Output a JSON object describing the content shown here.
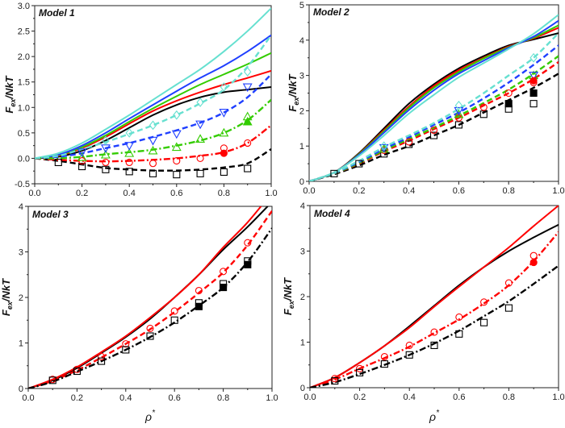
{
  "chart_data": [
    {
      "type": "line",
      "title": "Model 1",
      "ylabel": {
        "main": "F",
        "sub": "ex",
        "rest": "/NkT"
      },
      "xlabel": "",
      "xlim": [
        0,
        1
      ],
      "ylim": [
        -0.5,
        3.0
      ],
      "xticks": [
        "0.0",
        "0.2",
        "0.4",
        "0.6",
        "0.8",
        "1.0"
      ],
      "yticks": [
        "-0.5",
        "0.0",
        "0.5",
        "1.0",
        "1.5",
        "2.0",
        "2.5",
        "3.0"
      ],
      "x": [
        0,
        0.1,
        0.2,
        0.3,
        0.4,
        0.5,
        0.6,
        0.7,
        0.8,
        0.9,
        1.0
      ],
      "series": [
        {
          "color": "#000000",
          "style": "solid",
          "values": [
            0,
            0.03,
            0.15,
            0.35,
            0.6,
            0.85,
            1.05,
            1.2,
            1.3,
            1.35,
            1.4
          ]
        },
        {
          "color": "#ff0000",
          "style": "solid",
          "values": [
            0,
            0.05,
            0.2,
            0.42,
            0.68,
            0.93,
            1.13,
            1.3,
            1.45,
            1.58,
            1.72
          ]
        },
        {
          "color": "#33cc00",
          "style": "solid",
          "values": [
            0,
            0.06,
            0.22,
            0.45,
            0.72,
            0.98,
            1.22,
            1.45,
            1.65,
            1.85,
            2.07
          ]
        },
        {
          "color": "#1f3fff",
          "style": "solid",
          "values": [
            0,
            0.07,
            0.25,
            0.5,
            0.78,
            1.05,
            1.32,
            1.58,
            1.82,
            2.1,
            2.42
          ]
        },
        {
          "color": "#66e0d0",
          "style": "solid",
          "values": [
            0,
            0.1,
            0.3,
            0.57,
            0.85,
            1.15,
            1.45,
            1.75,
            2.1,
            2.5,
            2.95
          ]
        },
        {
          "color": "#000000",
          "style": "dash",
          "values": [
            0,
            -0.05,
            -0.12,
            -0.19,
            -0.22,
            -0.24,
            -0.24,
            -0.22,
            -0.18,
            -0.1,
            0.18
          ]
        },
        {
          "color": "#ff0000",
          "style": "dashdot",
          "values": [
            0,
            -0.03,
            -0.05,
            -0.06,
            -0.05,
            -0.03,
            0.0,
            0.05,
            0.12,
            0.3,
            0.65
          ]
        },
        {
          "color": "#33cc00",
          "style": "dashdot",
          "values": [
            0,
            0,
            0.03,
            0.08,
            0.12,
            0.17,
            0.25,
            0.35,
            0.5,
            0.75,
            1.15
          ]
        },
        {
          "color": "#1f3fff",
          "style": "dash",
          "values": [
            0,
            0.03,
            0.1,
            0.2,
            0.3,
            0.42,
            0.55,
            0.7,
            0.9,
            1.2,
            1.65
          ]
        },
        {
          "color": "#66e0d0",
          "style": "dash",
          "values": [
            0,
            0.05,
            0.18,
            0.32,
            0.48,
            0.65,
            0.85,
            1.08,
            1.35,
            1.8,
            2.42
          ]
        }
      ],
      "markers": [
        {
          "color": "#000000",
          "shape": "square",
          "x": [
            0.1,
            0.2,
            0.3,
            0.4,
            0.5,
            0.6,
            0.7,
            0.8,
            0.9
          ],
          "values": [
            -0.08,
            -0.16,
            -0.22,
            -0.26,
            -0.3,
            -0.32,
            -0.3,
            -0.27,
            -0.2
          ]
        },
        {
          "color": "#ff0000",
          "shape": "circle",
          "x": [
            0.2,
            0.3,
            0.4,
            0.5,
            0.6,
            0.7,
            0.8,
            0.9
          ],
          "values": [
            -0.05,
            -0.08,
            -0.08,
            -0.1,
            -0.05,
            0.0,
            0.2,
            0.3
          ]
        },
        {
          "color": "#33cc00",
          "shape": "triangle-up",
          "x": [
            0.2,
            0.3,
            0.4,
            0.5,
            0.6,
            0.7,
            0.8,
            0.9
          ],
          "values": [
            0.02,
            0.07,
            0.1,
            0.15,
            0.22,
            0.38,
            0.5,
            0.82
          ]
        },
        {
          "color": "#1f3fff",
          "shape": "triangle-down",
          "x": [
            0.2,
            0.3,
            0.4,
            0.5,
            0.6,
            0.7,
            0.8,
            0.9
          ],
          "values": [
            0.12,
            0.2,
            0.25,
            0.35,
            0.48,
            0.67,
            0.9,
            1.4
          ]
        },
        {
          "color": "#66e0d0",
          "shape": "diamond",
          "x": [
            0.3,
            0.4,
            0.5,
            0.6,
            0.7,
            0.8,
            0.9
          ],
          "values": [
            0.35,
            0.5,
            0.65,
            0.85,
            1.1,
            1.4,
            1.7
          ]
        },
        {
          "color": "#ff0000",
          "shape": "circle-filled",
          "x": [
            0.8
          ],
          "values": [
            0.1
          ]
        },
        {
          "color": "#33cc00",
          "shape": "triangle-filled",
          "x": [
            0.9
          ],
          "values": [
            0.72
          ]
        }
      ]
    },
    {
      "type": "line",
      "title": "Model 2",
      "ylabel": {
        "main": "F",
        "sub": "ex",
        "rest": "/NkT"
      },
      "xlabel": "",
      "xlim": [
        0,
        1
      ],
      "ylim": [
        0,
        5
      ],
      "xticks": [
        "0.0",
        "0.2",
        "0.4",
        "0.6",
        "0.8",
        "1.0"
      ],
      "yticks": [
        "0",
        "1",
        "2",
        "3",
        "4",
        "5"
      ],
      "x": [
        0,
        0.1,
        0.2,
        0.3,
        0.4,
        0.5,
        0.6,
        0.7,
        0.8,
        0.9,
        1.0
      ],
      "series": [
        {
          "color": "#000000",
          "style": "solid",
          "values": [
            0,
            0.25,
            0.8,
            1.5,
            2.2,
            2.75,
            3.2,
            3.55,
            3.85,
            4.02,
            4.2
          ]
        },
        {
          "color": "#ff0000",
          "style": "solid",
          "values": [
            0,
            0.25,
            0.78,
            1.45,
            2.12,
            2.7,
            3.15,
            3.5,
            3.82,
            4.05,
            4.35
          ]
        },
        {
          "color": "#33cc00",
          "style": "solid",
          "values": [
            0,
            0.25,
            0.77,
            1.42,
            2.08,
            2.65,
            3.1,
            3.48,
            3.8,
            4.07,
            4.42
          ]
        },
        {
          "color": "#1f3fff",
          "style": "solid",
          "values": [
            0,
            0.25,
            0.75,
            1.38,
            2.02,
            2.58,
            3.05,
            3.42,
            3.78,
            4.1,
            4.55
          ]
        },
        {
          "color": "#66e0d0",
          "style": "solid",
          "values": [
            0,
            0.25,
            0.72,
            1.3,
            1.92,
            2.45,
            2.95,
            3.35,
            3.75,
            4.18,
            4.72
          ]
        },
        {
          "color": "#000000",
          "style": "dash",
          "values": [
            0,
            0.2,
            0.45,
            0.75,
            1.0,
            1.3,
            1.6,
            1.95,
            2.3,
            2.65,
            3.05
          ]
        },
        {
          "color": "#ff0000",
          "style": "dash",
          "values": [
            0,
            0.22,
            0.5,
            0.85,
            1.15,
            1.48,
            1.8,
            2.15,
            2.5,
            2.9,
            3.38
          ]
        },
        {
          "color": "#33cc00",
          "style": "dash",
          "values": [
            0,
            0.22,
            0.52,
            0.88,
            1.2,
            1.52,
            1.86,
            2.22,
            2.6,
            3.05,
            3.55
          ]
        },
        {
          "color": "#1f3fff",
          "style": "dash",
          "values": [
            0,
            0.23,
            0.55,
            0.92,
            1.25,
            1.6,
            1.95,
            2.35,
            2.8,
            3.3,
            3.85
          ]
        },
        {
          "color": "#66e0d0",
          "style": "dash",
          "values": [
            0,
            0.24,
            0.58,
            0.97,
            1.3,
            1.65,
            2.05,
            2.5,
            3.0,
            3.5,
            4.2
          ]
        }
      ],
      "markers": [
        {
          "color": "#000000",
          "shape": "square",
          "x": [
            0.1,
            0.2,
            0.3,
            0.4,
            0.5,
            0.6,
            0.7,
            0.8,
            0.9
          ],
          "values": [
            0.22,
            0.5,
            0.78,
            1.05,
            1.3,
            1.6,
            1.9,
            2.05,
            2.2
          ]
        },
        {
          "color": "#ff0000",
          "shape": "circle",
          "x": [
            0.3,
            0.4,
            0.5,
            0.6,
            0.7,
            0.8,
            0.9
          ],
          "values": [
            0.88,
            1.12,
            1.45,
            1.8,
            2.1,
            2.5,
            2.8
          ]
        },
        {
          "color": "#33cc00",
          "shape": "triangle-up",
          "x": [
            0.3,
            0.6,
            0.9
          ],
          "values": [
            0.92,
            1.9,
            3.0
          ]
        },
        {
          "color": "#1f3fff",
          "shape": "triangle-down",
          "x": [
            0.3,
            0.6,
            0.9
          ],
          "values": [
            0.95,
            2.0,
            3.0
          ]
        },
        {
          "color": "#66e0d0",
          "shape": "diamond",
          "x": [
            0.3,
            0.6,
            0.9
          ],
          "values": [
            1.0,
            2.15,
            3.5
          ]
        },
        {
          "color": "#000000",
          "shape": "square-filled",
          "x": [
            0.8,
            0.9
          ],
          "values": [
            2.2,
            2.5
          ]
        },
        {
          "color": "#ff0000",
          "shape": "circle-filled",
          "x": [
            0.9
          ],
          "values": [
            2.85
          ]
        }
      ]
    },
    {
      "type": "line",
      "title": "Model 3",
      "ylabel": {
        "main": "F",
        "sub": "ex",
        "rest": "/NkT"
      },
      "xlabel": {
        "main": "ρ",
        "sup": "*"
      },
      "xlim": [
        0,
        1
      ],
      "ylim": [
        0,
        4
      ],
      "xticks": [
        "0.0",
        "0.2",
        "0.4",
        "0.6",
        "0.8",
        "1.0"
      ],
      "yticks": [
        "0",
        "1",
        "2",
        "3",
        "4"
      ],
      "x": [
        0,
        0.1,
        0.2,
        0.3,
        0.4,
        0.5,
        0.6,
        0.7,
        0.8,
        0.9,
        1.0
      ],
      "series": [
        {
          "color": "#000000",
          "style": "solid",
          "values": [
            0,
            0.18,
            0.45,
            0.78,
            1.13,
            1.53,
            2.0,
            2.5,
            3.05,
            3.55,
            4.1
          ]
        },
        {
          "color": "#ff0000",
          "style": "solid",
          "values": [
            0,
            0.2,
            0.47,
            0.8,
            1.15,
            1.56,
            2.0,
            2.5,
            3.1,
            3.65,
            4.3
          ]
        },
        {
          "color": "#ff0000",
          "style": "dash",
          "values": [
            0,
            0.17,
            0.4,
            0.68,
            0.98,
            1.3,
            1.68,
            2.1,
            2.55,
            3.15,
            3.9
          ]
        },
        {
          "color": "#000000",
          "style": "dashdot",
          "values": [
            0,
            0.15,
            0.37,
            0.6,
            0.85,
            1.13,
            1.45,
            1.82,
            2.22,
            2.78,
            3.52
          ]
        }
      ],
      "markers": [
        {
          "color": "#ff0000",
          "shape": "circle",
          "x": [
            0.1,
            0.2,
            0.3,
            0.4,
            0.5,
            0.6,
            0.7,
            0.8,
            0.9
          ],
          "values": [
            0.2,
            0.42,
            0.7,
            0.98,
            1.32,
            1.7,
            2.15,
            2.57,
            3.2
          ]
        },
        {
          "color": "#000000",
          "shape": "square",
          "x": [
            0.1,
            0.2,
            0.3,
            0.4,
            0.5,
            0.6,
            0.7,
            0.8,
            0.9
          ],
          "values": [
            0.18,
            0.38,
            0.6,
            0.85,
            1.15,
            1.5,
            1.88,
            2.3,
            2.8
          ]
        },
        {
          "color": "#000000",
          "shape": "square-filled",
          "x": [
            0.7,
            0.8,
            0.9
          ],
          "values": [
            1.8,
            2.22,
            2.72
          ]
        }
      ]
    },
    {
      "type": "line",
      "title": "Model 4",
      "ylabel": {
        "main": "F",
        "sub": "ex",
        "rest": "/NkT"
      },
      "xlabel": {
        "main": "ρ",
        "sup": "*"
      },
      "xlim": [
        0,
        1
      ],
      "ylim": [
        0,
        4
      ],
      "xticks": [
        "0.0",
        "0.2",
        "0.4",
        "0.6",
        "0.8",
        "1.0"
      ],
      "yticks": [
        "0",
        "1",
        "2",
        "3",
        "4"
      ],
      "x": [
        0,
        0.1,
        0.2,
        0.3,
        0.4,
        0.5,
        0.6,
        0.7,
        0.8,
        0.9,
        1.0
      ],
      "series": [
        {
          "color": "#000000",
          "style": "solid",
          "values": [
            0,
            0.22,
            0.55,
            0.92,
            1.35,
            1.8,
            2.25,
            2.65,
            3.0,
            3.3,
            3.58
          ]
        },
        {
          "color": "#ff0000",
          "style": "solid",
          "values": [
            0,
            0.22,
            0.55,
            0.92,
            1.32,
            1.78,
            2.22,
            2.65,
            3.08,
            3.55,
            4.0
          ]
        },
        {
          "color": "#ff0000",
          "style": "dashdot",
          "values": [
            0,
            0.18,
            0.42,
            0.65,
            0.9,
            1.2,
            1.5,
            1.85,
            2.25,
            2.78,
            3.42
          ]
        },
        {
          "color": "#000000",
          "style": "dashdot",
          "values": [
            0,
            0.12,
            0.3,
            0.5,
            0.72,
            0.97,
            1.25,
            1.57,
            1.9,
            2.28,
            2.68
          ]
        }
      ],
      "markers": [
        {
          "color": "#ff0000",
          "shape": "circle",
          "x": [
            0.1,
            0.2,
            0.3,
            0.4,
            0.5,
            0.6,
            0.7,
            0.8,
            0.9
          ],
          "values": [
            0.2,
            0.42,
            0.68,
            0.93,
            1.22,
            1.55,
            1.88,
            2.3,
            2.9
          ]
        },
        {
          "color": "#000000",
          "shape": "square",
          "x": [
            0.1,
            0.2,
            0.3,
            0.4,
            0.5,
            0.6,
            0.7,
            0.8
          ],
          "values": [
            0.15,
            0.33,
            0.52,
            0.72,
            0.93,
            1.18,
            1.43,
            1.75
          ]
        },
        {
          "color": "#ff0000",
          "shape": "circle-filled",
          "x": [
            0.9
          ],
          "values": [
            2.75
          ]
        }
      ]
    }
  ]
}
